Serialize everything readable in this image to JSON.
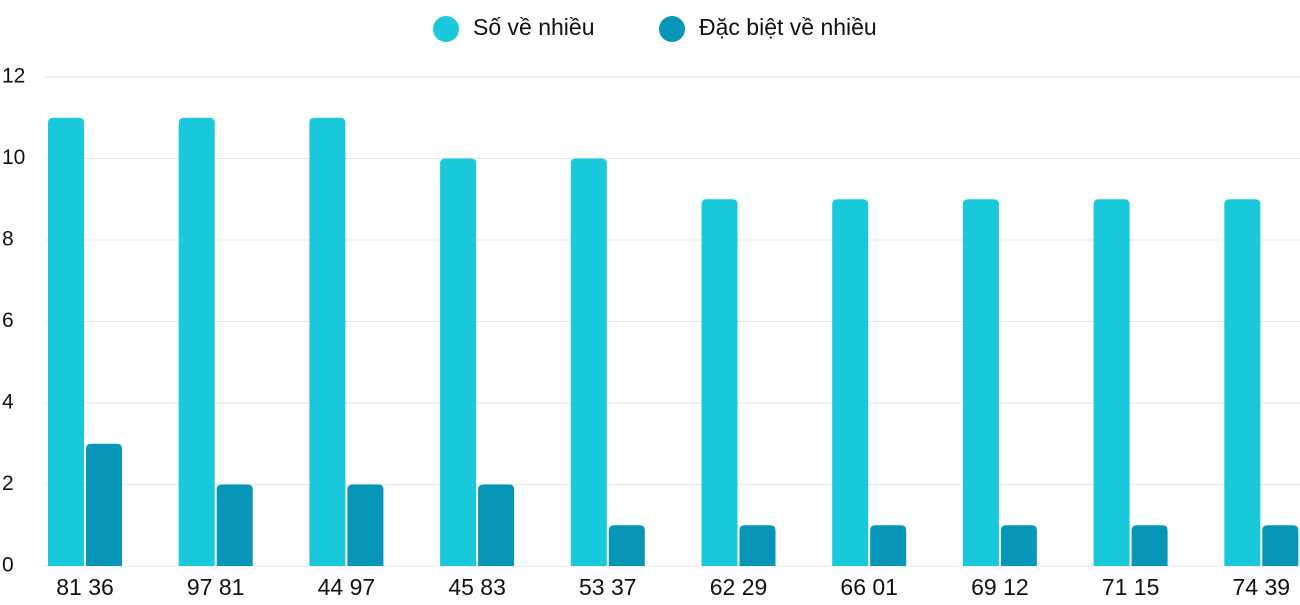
{
  "chart_data": {
    "type": "bar",
    "categories": [
      "81 36",
      "97 81",
      "44 97",
      "45 83",
      "53 37",
      "62 29",
      "66 01",
      "69 12",
      "71 15",
      "74 39"
    ],
    "series": [
      {
        "name": "Số về nhiều",
        "color": "#1ac8db",
        "values": [
          11,
          11,
          11,
          10,
          10,
          9,
          9,
          9,
          9,
          9
        ]
      },
      {
        "name": "Đặc biệt về nhiều",
        "color": "#0795b8",
        "values": [
          3,
          2,
          2,
          2,
          1,
          1,
          1,
          1,
          1,
          1
        ]
      }
    ],
    "ylim": [
      0,
      12
    ],
    "yticks": [
      0,
      2,
      4,
      6,
      8,
      10,
      12
    ],
    "grid": true,
    "legend": "top"
  }
}
